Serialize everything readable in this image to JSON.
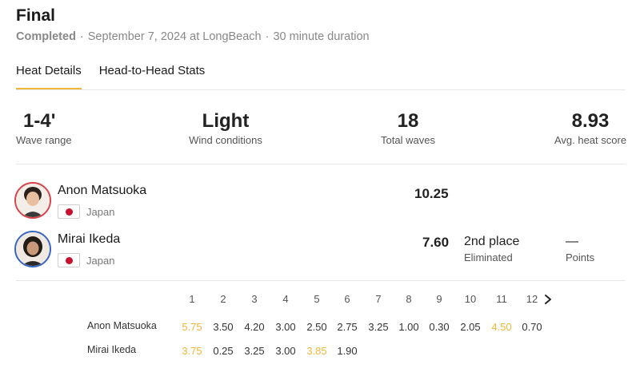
{
  "header": {
    "title": "Final",
    "status": "Completed",
    "date": "September 7, 2024 at LongBeach",
    "duration": "30 minute duration",
    "separator": "·"
  },
  "tabs": [
    {
      "label": "Heat Details",
      "active": true
    },
    {
      "label": "Head-to-Head Stats",
      "active": false
    }
  ],
  "stats": {
    "wave_range": {
      "value": "1-4'",
      "label": "Wave range"
    },
    "wind": {
      "value": "Light",
      "label": "Wind conditions"
    },
    "total_waves": {
      "value": "18",
      "label": "Total waves"
    },
    "avg_score": {
      "value": "8.93",
      "label": "Avg. heat score"
    }
  },
  "surfers": [
    {
      "name": "Anon Matsuoka",
      "country": "Japan",
      "score": "10.25",
      "ring_color": "#d9434b"
    },
    {
      "name": "Mirai Ikeda",
      "country": "Japan",
      "score": "7.60",
      "ring_color": "#3b67c4",
      "place": "2nd place",
      "place_label": "Eliminated",
      "points": "—",
      "points_label": "Points"
    }
  ],
  "waves": {
    "numbers": [
      "1",
      "2",
      "3",
      "4",
      "5",
      "6",
      "7",
      "8",
      "9",
      "10",
      "11",
      "12"
    ],
    "rows": [
      {
        "name": "Anon Matsuoka",
        "scores": [
          "5.75",
          "3.50",
          "4.20",
          "3.00",
          "2.50",
          "2.75",
          "3.25",
          "1.00",
          "0.30",
          "2.05",
          "4.50",
          "0.70"
        ],
        "highlight": [
          0,
          10
        ]
      },
      {
        "name": "Mirai Ikeda",
        "scores": [
          "3.75",
          "0.25",
          "3.25",
          "3.00",
          "3.85",
          "1.90"
        ],
        "highlight": [
          0,
          4
        ]
      }
    ]
  },
  "colors": {
    "accent": "#f0b73a"
  }
}
